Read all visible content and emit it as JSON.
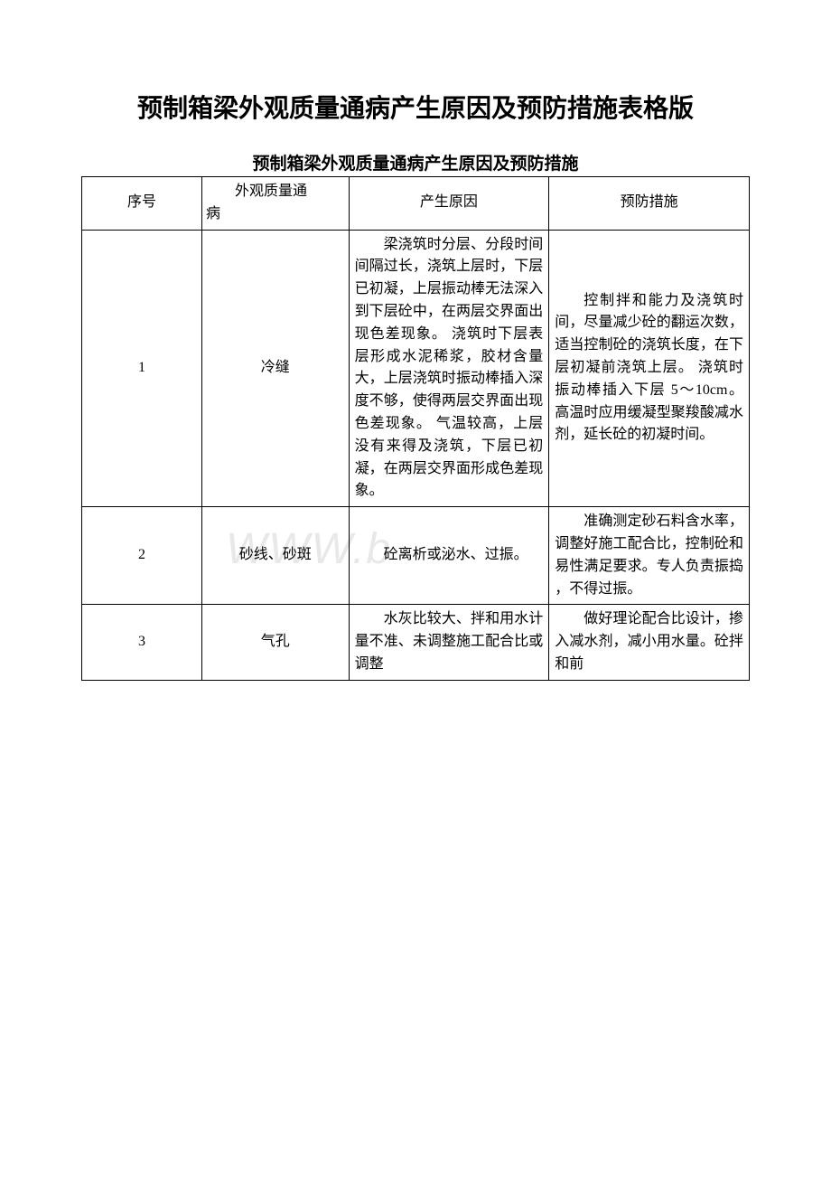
{
  "title": {
    "main": "预制箱梁外观质量通病产生原因及预防措施表格版",
    "sub": "预制箱梁外观质量通病产生原因及预防措施"
  },
  "watermark": "WWW.b",
  "table": {
    "header": {
      "col1": "序号",
      "col2_line1": "外观质量通",
      "col2_line2": "病",
      "col3": "产生原因",
      "col4": "预防措施"
    },
    "rows": [
      {
        "num": "1",
        "defect": "冷缝",
        "cause": "梁浇筑时分层、分段时间间隔过长，浇筑上层时，下层已初凝，上层振动棒无法深入到下层砼中，在两层交界面出现色差现象。 浇筑时下层表层形成水泥稀浆，胶材含量大，上层浇筑时振动棒插入深度不够，使得两层交界面出现色差现象。 气温较高，上层没有来得及浇筑，下层已初凝，在两层交界面形成色差现象。",
        "prevention": "控制拌和能力及浇筑时间，尽量减少砼的翻运次数，适当控制砼的浇筑长度，在下层初凝前浇筑上层。 浇筑时振动棒插入下层 5～10cm。 高温时应用缓凝型聚羧酸减水剂，延长砼的初凝时间。"
      },
      {
        "num": "2",
        "defect": "砂线、砂斑",
        "cause": "砼离析或泌水、过振。",
        "prevention": "准确测定砂石料含水率，调整好施工配合比，控制砼和易性满足要求。专人负责振捣 ，不得过振。"
      },
      {
        "num": "3",
        "defect": "气孔",
        "cause": "水灰比较大、拌和用水计量不准、未调整施工配合比或调整",
        "prevention": "做好理论配合比设计，掺入减水剂，减小用水量。砼拌和前"
      }
    ]
  },
  "styles": {
    "background_color": "#ffffff",
    "border_color": "#000000",
    "text_color": "#000000",
    "watermark_color": "#e8e8e8",
    "title_fontsize": 28,
    "subtitle_fontsize": 19,
    "cell_fontsize": 16,
    "font_family": "SimSun"
  }
}
